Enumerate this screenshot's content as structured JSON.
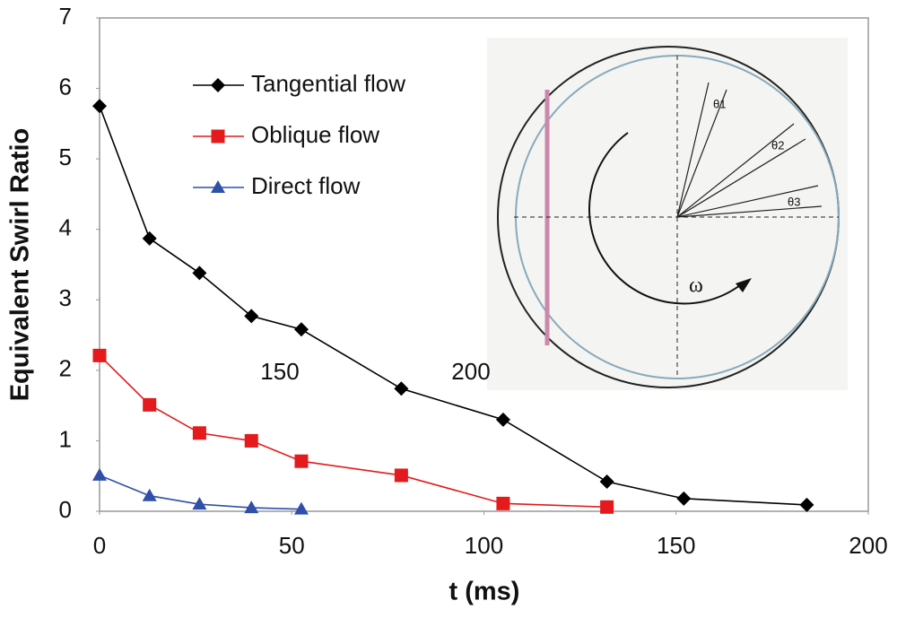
{
  "chart_data": {
    "type": "line",
    "xlabel": "t (ms)",
    "ylabel": "Equivalent Swirl Ratio",
    "xlim": [
      0,
      200
    ],
    "xticks": [
      0,
      50,
      100,
      150,
      200
    ],
    "ylim": [
      0,
      7
    ],
    "yticks": [
      0,
      1,
      2,
      3,
      4,
      5,
      6,
      7
    ],
    "legend": "upper left",
    "series": [
      {
        "name": "Tangential flow",
        "color": "#000000",
        "marker": "diamond",
        "x": [
          0,
          13,
          26,
          39.5,
          52.5,
          78.5,
          105,
          132,
          152,
          184
        ],
        "values": [
          5.75,
          3.87,
          3.38,
          2.77,
          2.58,
          1.74,
          1.3,
          0.42,
          0.18,
          0.09
        ]
      },
      {
        "name": "Oblique flow",
        "color": "#e41a1c",
        "marker": "square",
        "x": [
          0,
          13,
          26,
          39.5,
          52.5,
          78.5,
          105,
          132
        ],
        "values": [
          2.21,
          1.51,
          1.11,
          1.0,
          0.71,
          0.51,
          0.11,
          0.06
        ]
      },
      {
        "name": "Direct flow",
        "color": "#2f4fa8",
        "marker": "triangle",
        "x": [
          0,
          13,
          26,
          39.5,
          52.5
        ],
        "values": [
          0.51,
          0.22,
          0.1,
          0.05,
          0.03
        ]
      }
    ],
    "annotations": [
      "150",
      "200"
    ],
    "inset_labels": [
      "θ1",
      "θ2",
      "θ3",
      "ω"
    ]
  }
}
